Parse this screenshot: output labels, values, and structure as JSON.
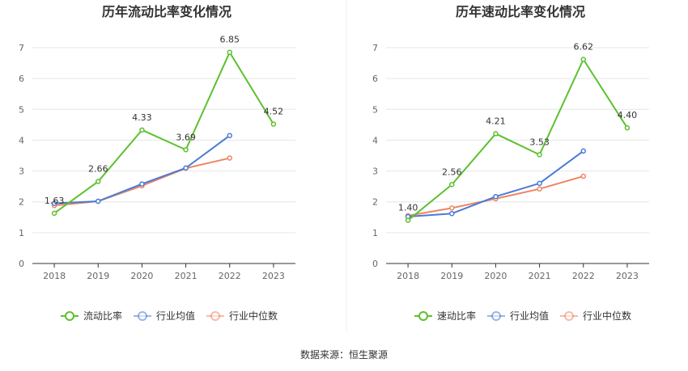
{
  "source_label": "数据来源：恒生聚源",
  "colors": {
    "primary": "#5cc12e",
    "industry_avg": "#4a7bd6",
    "industry_median": "#ed8661",
    "grid": "#e6e6e6",
    "axis": "#333333"
  },
  "chart_data": [
    {
      "type": "line",
      "title": "历年流动比率变化情况",
      "categories": [
        "2018",
        "2019",
        "2020",
        "2021",
        "2022",
        "2023"
      ],
      "ylim": [
        0,
        7
      ],
      "yticks": [
        "0",
        "1",
        "2",
        "3",
        "4",
        "5",
        "6",
        "7"
      ],
      "grid": true,
      "legend_position": "bottom",
      "series": [
        {
          "name": "流动比率",
          "values": [
            1.63,
            2.66,
            4.33,
            3.69,
            6.85,
            4.52
          ],
          "labels": [
            "1.63",
            "2.66",
            "4.33",
            "3.69",
            "6.85",
            "4.52"
          ]
        },
        {
          "name": "行业均值",
          "values": [
            1.95,
            2.02,
            2.58,
            3.1,
            4.15,
            null
          ]
        },
        {
          "name": "行业中位数",
          "values": [
            1.88,
            2.02,
            2.52,
            3.09,
            3.42,
            null
          ]
        }
      ]
    },
    {
      "type": "line",
      "title": "历年速动比率变化情况",
      "categories": [
        "2018",
        "2019",
        "2020",
        "2021",
        "2022",
        "2023"
      ],
      "ylim": [
        0,
        7
      ],
      "yticks": [
        "0",
        "1",
        "2",
        "3",
        "4",
        "5",
        "6",
        "7"
      ],
      "grid": true,
      "legend_position": "bottom",
      "series": [
        {
          "name": "速动比率",
          "values": [
            1.4,
            2.56,
            4.21,
            3.53,
            6.62,
            4.4
          ],
          "labels": [
            "1.40",
            "2.56",
            "4.21",
            "3.53",
            "6.62",
            "4.40"
          ]
        },
        {
          "name": "行业均值",
          "values": [
            1.52,
            1.62,
            2.17,
            2.6,
            3.65,
            null
          ]
        },
        {
          "name": "行业中位数",
          "values": [
            1.55,
            1.8,
            2.1,
            2.42,
            2.83,
            null
          ]
        }
      ]
    }
  ]
}
